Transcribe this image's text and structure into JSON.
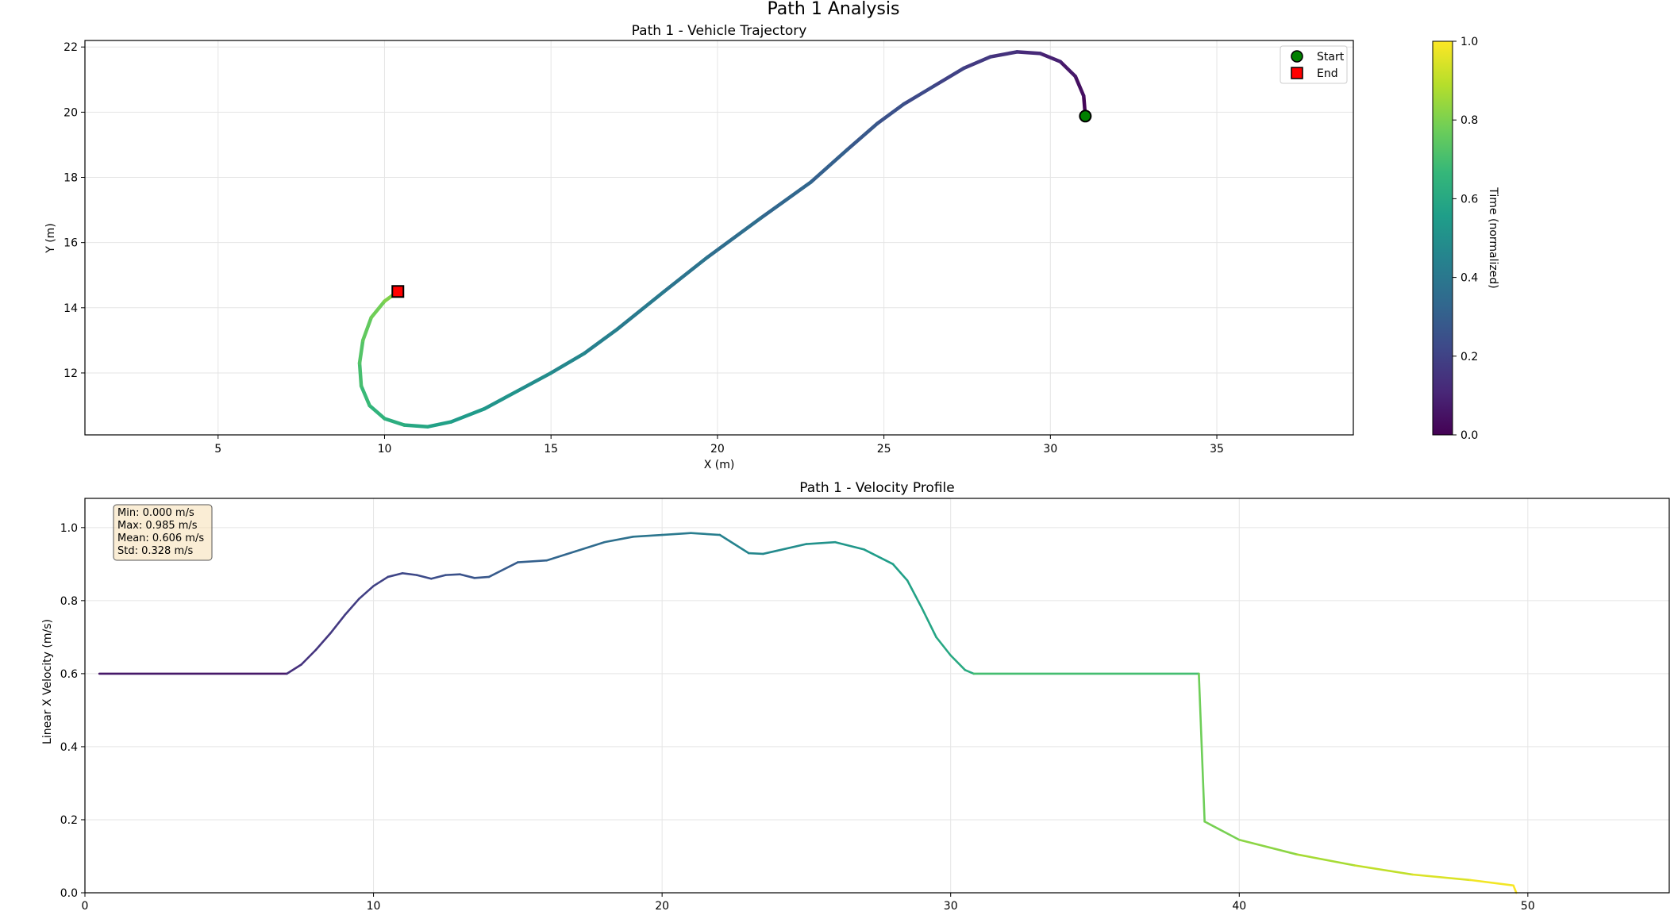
{
  "figure": {
    "title": "Path 1 Analysis"
  },
  "colormap": {
    "name": "viridis",
    "stops": [
      "#440154",
      "#482878",
      "#3e4989",
      "#31688e",
      "#26828e",
      "#1f9e89",
      "#35b779",
      "#6ece58",
      "#b5de2b",
      "#fde725"
    ]
  },
  "chart_data": [
    {
      "type": "line",
      "title": "Path 1 - Vehicle Trajectory",
      "xlabel": "X (m)",
      "ylabel": "Y (m)",
      "xlim": [
        1.0,
        39.1
      ],
      "ylim": [
        10.1,
        22.2
      ],
      "xticks": [
        5,
        10,
        15,
        20,
        25,
        30,
        35
      ],
      "yticks": [
        12,
        14,
        16,
        18,
        20,
        22
      ],
      "grid": true,
      "color_by": "time (normalized)",
      "points": [
        [
          31.05,
          19.88
        ],
        [
          31.0,
          20.5
        ],
        [
          30.75,
          21.1
        ],
        [
          30.3,
          21.55
        ],
        [
          29.7,
          21.8
        ],
        [
          29.0,
          21.85
        ],
        [
          28.2,
          21.7
        ],
        [
          27.4,
          21.35
        ],
        [
          26.5,
          20.8
        ],
        [
          25.6,
          20.25
        ],
        [
          24.8,
          19.65
        ],
        [
          23.9,
          18.85
        ],
        [
          22.8,
          17.85
        ],
        [
          21.3,
          16.75
        ],
        [
          19.7,
          15.55
        ],
        [
          18.4,
          14.5
        ],
        [
          17.0,
          13.35
        ],
        [
          16.0,
          12.6
        ],
        [
          15.0,
          12.0
        ],
        [
          14.0,
          11.45
        ],
        [
          13.0,
          10.9
        ],
        [
          12.0,
          10.5
        ],
        [
          11.3,
          10.35
        ],
        [
          10.6,
          10.4
        ],
        [
          10.0,
          10.6
        ],
        [
          9.55,
          11.0
        ],
        [
          9.3,
          11.6
        ],
        [
          9.25,
          12.3
        ],
        [
          9.35,
          13.0
        ],
        [
          9.6,
          13.7
        ],
        [
          10.0,
          14.2
        ],
        [
          10.4,
          14.5
        ]
      ],
      "markers": [
        {
          "label": "Start",
          "x": 31.05,
          "y": 19.88,
          "shape": "circle",
          "color": "#008000"
        },
        {
          "label": "End",
          "x": 10.4,
          "y": 14.5,
          "shape": "square",
          "color": "#ff0000"
        }
      ],
      "legend": {
        "position": "top-right",
        "entries": [
          "Start",
          "End"
        ]
      },
      "colorbar": {
        "label": "Time (normalized)",
        "range": [
          0.0,
          1.0
        ],
        "ticks": [
          "0.0",
          "0.2",
          "0.4",
          "0.6",
          "0.8",
          "1.0"
        ]
      }
    },
    {
      "type": "line",
      "title": "Path 1 - Velocity Profile",
      "xlabel": "",
      "ylabel": "Linear X Velocity (m/s)",
      "xlim": [
        0,
        54.9
      ],
      "ylim": [
        0.0,
        1.08
      ],
      "xticks": [
        0,
        10,
        20,
        30,
        40,
        50
      ],
      "yticks": [
        "0.0",
        "0.2",
        "0.4",
        "0.6",
        "0.8",
        "1.0"
      ],
      "grid": true,
      "color_by": "time (normalized)",
      "x": [
        0.5,
        7.0,
        7.5,
        8.0,
        8.5,
        9.0,
        9.5,
        10.0,
        10.5,
        11.0,
        11.5,
        12.0,
        12.5,
        13.0,
        13.5,
        14.0,
        15.0,
        16.0,
        17.0,
        18.0,
        19.0,
        20.0,
        21.0,
        22.0,
        22.5,
        23.0,
        23.5,
        24.0,
        25.0,
        26.0,
        27.0,
        28.0,
        28.5,
        29.0,
        29.5,
        30.0,
        30.5,
        30.8,
        38.6,
        38.8,
        40.0,
        42.0,
        44.0,
        46.0,
        48.0,
        49.5,
        49.6
      ],
      "y": [
        0.6,
        0.6,
        0.625,
        0.665,
        0.71,
        0.76,
        0.805,
        0.84,
        0.865,
        0.875,
        0.87,
        0.86,
        0.87,
        0.872,
        0.862,
        0.865,
        0.905,
        0.91,
        0.935,
        0.96,
        0.975,
        0.98,
        0.985,
        0.98,
        0.955,
        0.93,
        0.928,
        0.937,
        0.955,
        0.96,
        0.94,
        0.9,
        0.855,
        0.78,
        0.7,
        0.65,
        0.61,
        0.6,
        0.6,
        0.195,
        0.145,
        0.105,
        0.075,
        0.05,
        0.035,
        0.02,
        0.0
      ],
      "stats": {
        "min": "Min: 0.000 m/s",
        "max": "Max: 0.985 m/s",
        "mean": "Mean: 0.606 m/s",
        "std": "Std: 0.328 m/s"
      }
    }
  ]
}
